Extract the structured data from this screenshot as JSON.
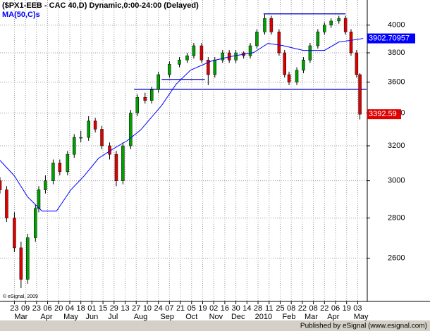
{
  "chart_data": {
    "type": "candlestick",
    "title": "($PX1-EEB - CAC 40,D) Dynamic,0:00-24:00 (Delayed)",
    "copyright": "© eSignal, 2009",
    "footer": "Published by eSignal (www.esignal.com)",
    "log_scale": true,
    "grid": true,
    "xlim": [
      0,
      331
    ],
    "ylim": [
      2400,
      4190
    ],
    "yticks": [
      2600,
      2800,
      3000,
      3200,
      3400,
      3600,
      3800,
      4000
    ],
    "xticks": [
      {
        "value": 13,
        "label": "23"
      },
      {
        "value": 23,
        "label": "09"
      },
      {
        "value": 33,
        "label": "23"
      },
      {
        "value": 43,
        "label": "06"
      },
      {
        "value": 53,
        "label": "20"
      },
      {
        "value": 63,
        "label": "04"
      },
      {
        "value": 73,
        "label": "18"
      },
      {
        "value": 83,
        "label": "01"
      },
      {
        "value": 93,
        "label": "15"
      },
      {
        "value": 103,
        "label": "29"
      },
      {
        "value": 113,
        "label": "13"
      },
      {
        "value": 123,
        "label": "27"
      },
      {
        "value": 133,
        "label": "10"
      },
      {
        "value": 143,
        "label": "24"
      },
      {
        "value": 153,
        "label": "07"
      },
      {
        "value": 163,
        "label": "21"
      },
      {
        "value": 173,
        "label": "05"
      },
      {
        "value": 183,
        "label": "19"
      },
      {
        "value": 193,
        "label": "02"
      },
      {
        "value": 203,
        "label": "16"
      },
      {
        "value": 213,
        "label": "30"
      },
      {
        "value": 223,
        "label": "14"
      },
      {
        "value": 233,
        "label": "28"
      },
      {
        "value": 243,
        "label": "11"
      },
      {
        "value": 253,
        "label": "25"
      },
      {
        "value": 263,
        "label": "08"
      },
      {
        "value": 273,
        "label": "22"
      },
      {
        "value": 283,
        "label": "08"
      },
      {
        "value": 293,
        "label": "22"
      },
      {
        "value": 303,
        "label": "06"
      },
      {
        "value": 313,
        "label": "19"
      },
      {
        "value": 323,
        "label": "03"
      }
    ],
    "months": [
      {
        "value": 19,
        "label": "Mar"
      },
      {
        "value": 42,
        "label": "Apr"
      },
      {
        "value": 64,
        "label": "May"
      },
      {
        "value": 83,
        "label": "Jun"
      },
      {
        "value": 102,
        "label": "Jul"
      },
      {
        "value": 127,
        "label": "Aug"
      },
      {
        "value": 151,
        "label": "Sep"
      },
      {
        "value": 173,
        "label": "Oct"
      },
      {
        "value": 195,
        "label": "Nov"
      },
      {
        "value": 215,
        "label": "Dec"
      },
      {
        "value": 238,
        "label": "2010"
      },
      {
        "value": 261,
        "label": "Feb"
      },
      {
        "value": 281,
        "label": "Mar"
      },
      {
        "value": 301,
        "label": "Apr"
      },
      {
        "value": 326,
        "label": "May"
      }
    ],
    "candles": {
      "up_color": "#00a000",
      "down_color": "#e00000",
      "x": [
        0,
        6,
        13,
        19,
        25,
        32,
        35,
        41,
        48,
        54,
        61,
        67,
        73,
        80,
        86,
        92,
        99,
        105,
        111,
        118,
        124,
        131,
        137,
        143,
        153,
        162,
        169,
        175,
        182,
        188,
        194,
        201,
        207,
        213,
        220,
        226,
        232,
        239,
        245,
        252,
        257,
        261,
        268,
        274,
        280,
        287,
        293,
        299,
        306,
        312,
        317,
        322,
        325
      ],
      "open": [
        3000,
        2950,
        2800,
        2650,
        2500,
        2700,
        2850,
        2950,
        3000,
        3100,
        3050,
        3150,
        3250,
        3250,
        3350,
        3300,
        3200,
        3150,
        3000,
        3200,
        3400,
        3500,
        3480,
        3550,
        3650,
        3720,
        3750,
        3780,
        3850,
        3750,
        3650,
        3750,
        3800,
        3750,
        3800,
        3780,
        3850,
        3950,
        4050,
        3950,
        3800,
        3650,
        3600,
        3680,
        3750,
        3850,
        3950,
        4000,
        4030,
        4050,
        3950,
        3800,
        3650
      ],
      "high": [
        3020,
        2970,
        2830,
        2680,
        2720,
        2870,
        2970,
        3030,
        3120,
        3120,
        3170,
        3270,
        3290,
        3380,
        3370,
        3320,
        3220,
        3170,
        3220,
        3420,
        3520,
        3530,
        3570,
        3670,
        3740,
        3770,
        3800,
        3870,
        3870,
        3770,
        3770,
        3820,
        3820,
        3820,
        3810,
        3870,
        3970,
        4080,
        4070,
        3970,
        3820,
        3670,
        3700,
        3770,
        3870,
        3970,
        4020,
        4050,
        4070,
        4070,
        3970,
        3820,
        3660
      ],
      "low": [
        2930,
        2780,
        2630,
        2460,
        2480,
        2680,
        2830,
        2930,
        2980,
        3030,
        3030,
        3130,
        3220,
        3230,
        3280,
        3180,
        3120,
        2970,
        2980,
        3180,
        3380,
        3460,
        3460,
        3530,
        3630,
        3700,
        3730,
        3760,
        3730,
        3580,
        3630,
        3730,
        3730,
        3730,
        3760,
        3760,
        3830,
        3930,
        3930,
        3780,
        3630,
        3580,
        3580,
        3660,
        3730,
        3830,
        3930,
        3980,
        4010,
        3930,
        3780,
        3630,
        3360
      ],
      "close": [
        2950,
        2800,
        2650,
        2500,
        2700,
        2850,
        2950,
        3000,
        3100,
        3050,
        3150,
        3250,
        3250,
        3350,
        3300,
        3200,
        3150,
        3000,
        3200,
        3400,
        3500,
        3480,
        3550,
        3650,
        3720,
        3750,
        3780,
        3850,
        3750,
        3650,
        3750,
        3800,
        3750,
        3800,
        3780,
        3850,
        3950,
        4050,
        3950,
        3800,
        3650,
        3600,
        3680,
        3750,
        3850,
        3950,
        4000,
        4030,
        4050,
        3950,
        3800,
        3650,
        3392.59
      ]
    },
    "series": [
      {
        "name": "MA(50,C)s",
        "color": "#0000ff",
        "x": [
          0,
          13,
          25,
          38,
          51,
          64,
          76,
          89,
          102,
          115,
          127,
          146,
          159,
          172,
          191,
          210,
          229,
          242,
          255,
          274,
          293,
          306,
          318,
          328
        ],
        "values": [
          3115,
          3027,
          2911,
          2836,
          2836,
          2950,
          3027,
          3127,
          3181,
          3231,
          3295,
          3448,
          3586,
          3680,
          3743,
          3777,
          3802,
          3867,
          3852,
          3817,
          3817,
          3877,
          3890,
          3902.70957
        ]
      }
    ],
    "lines": [
      {
        "value": 4084,
        "from": 238,
        "to": 312
      },
      {
        "value": 3553,
        "from": 121,
        "to": 331
      },
      {
        "value": 3618,
        "from": 146,
        "to": 185
      }
    ]
  }
}
